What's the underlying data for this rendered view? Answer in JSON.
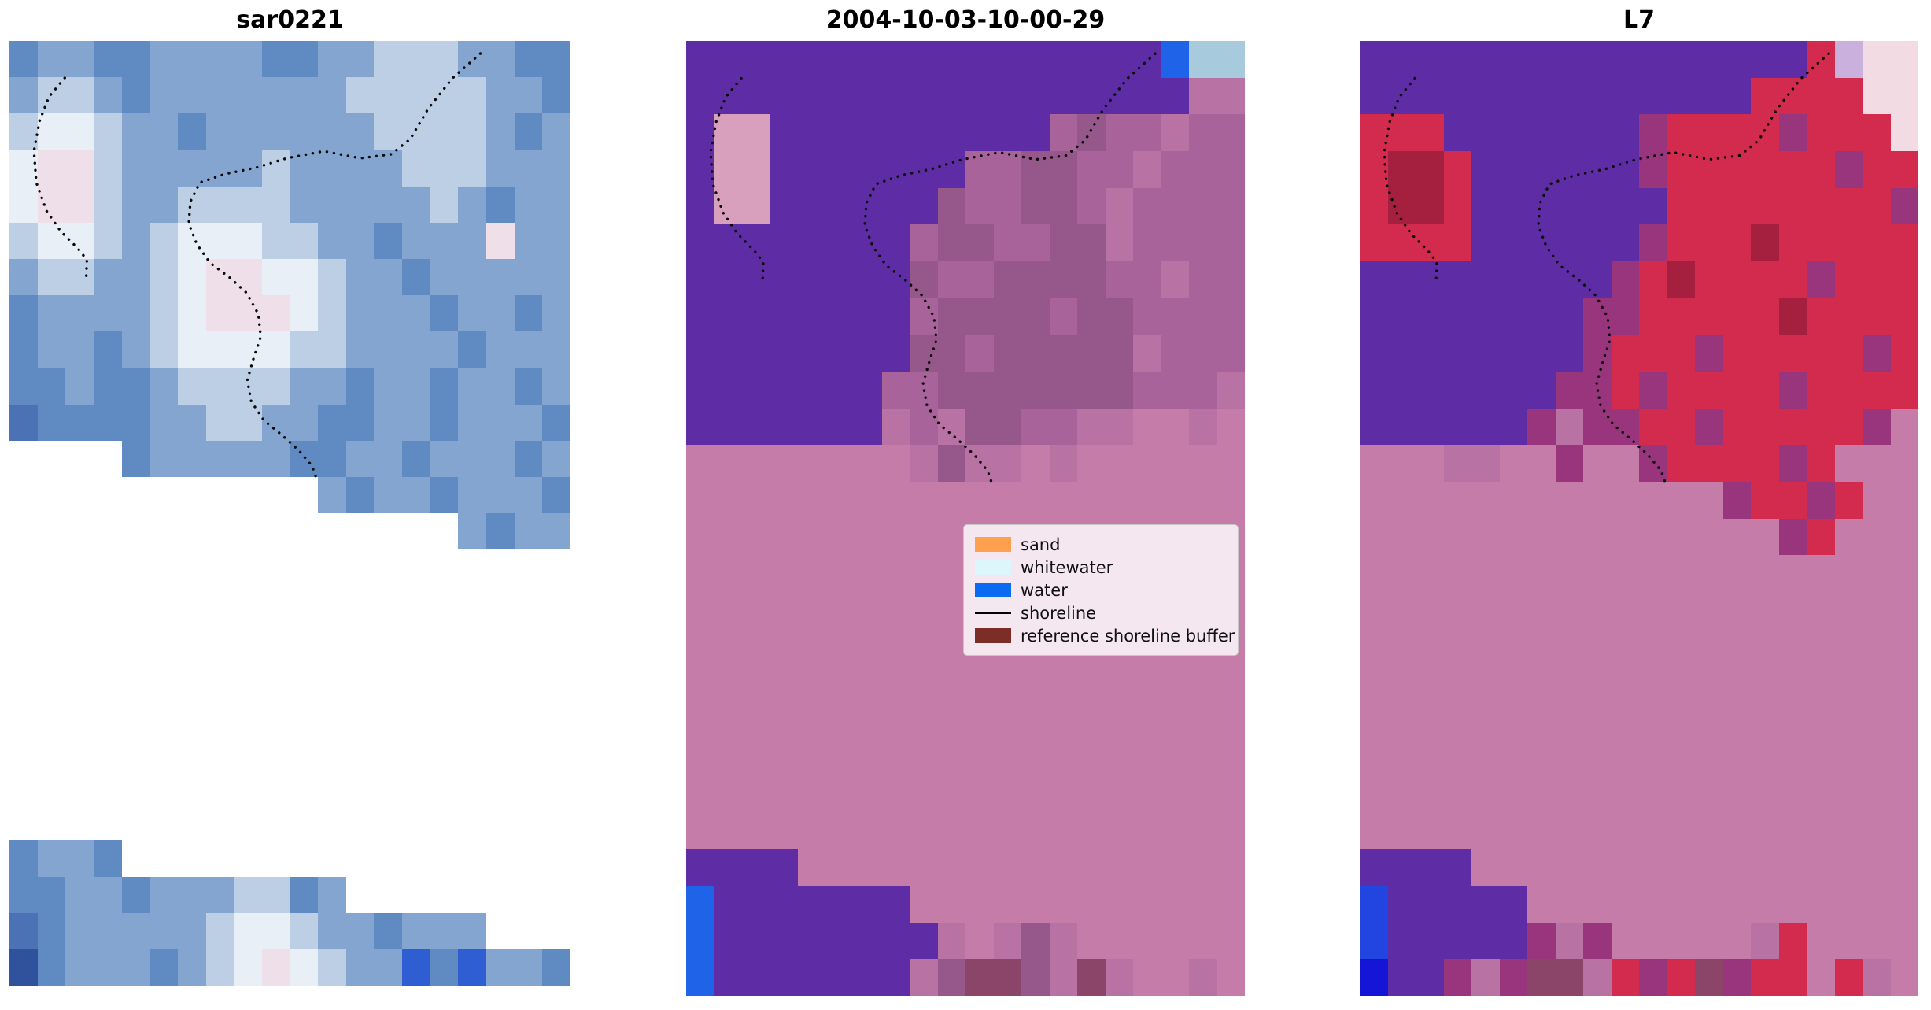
{
  "chart_data": {
    "type": "heatmap",
    "title": "",
    "layout": {
      "grid": false,
      "axes": false,
      "legend_position": "center of middle panel"
    },
    "panels": [
      {
        "id": "sar0221",
        "title": "sar0221",
        "description": "SAR backscatter image, blue tones, stepped no-data edges",
        "grid_size": {
          "cols": 20,
          "rows": 26
        },
        "palette": {
          "a": "#5f8ac2",
          "b": "#84a5d0",
          "c": "#bccfe5",
          "d": "#e9eff7",
          "e": "#eedfe9",
          "f": "#4a72b5",
          "g": "#30519c",
          "i": "#2e5ed2"
        },
        "pixel_rows": [
          "abbaabbbbaabbcccbbaa",
          "bccbabbbbbbbcccccbba",
          "cddcbbabbbbbbccccbab",
          "deecbbbbbcbbbbcccbbb",
          "deecbbccccbbbbbcbabb",
          "cddcbcdddccbbabbbebb",
          "bccbbcdeeddcbbabbbbb",
          "abbbbcdeeedcbbbabbab",
          "abbabcddddccbbbbabbb",
          "aabaabccccbbabbabbab",
          "faaaabbccbbaabbabbba",
          "....abbbbbaabbabbbab",
          "...........babbabbba",
          "................babb",
          "....................",
          "....................",
          "....................",
          "....................",
          "....................",
          "....................",
          "....................",
          "....................",
          "abba................",
          "aabbabbbccab........",
          "fabbbbbcddcbbabbb...",
          "gabbbabcdedcbbiaibba"
        ]
      },
      {
        "id": "classification",
        "title": "2004-10-03-10-00-29",
        "description": "classified image: purple water class over pink reference shoreline buffer",
        "grid_size": {
          "cols": 20,
          "rows": 26
        },
        "palette": {
          "p": "#5e2ca4",
          "r": "#d9a0bd",
          "m": "#a9639b",
          "n": "#96578b",
          "q": "#b873a4",
          "k": "#c67ca9",
          "b": "#1e63e8",
          "c": "#a7cbdc",
          "o": "#8a4568"
        },
        "pixel_rows": [
          "pppppppppppppppppbcc",
          "ppppppppppppppppppqq",
          "prrppppppppppmnmmqmm",
          "prrpppppppmmnnmmqmmm",
          "prrppppppnmmnnmqmmmm",
          "ppppppppmnnmmnnqmmmm",
          "ppppppppnmmnnnnmmqmm",
          "ppppppppmnnnnmnnmmmm",
          "ppppppppnnmnnnnnqmmm",
          "pppppppmmnnnnnnnmmmq",
          "pppppppqmqnnmmqqkkqk",
          "kkkkkkkkqnqqkqkkkkkk",
          "kkkkkkkkkkkkkkkkkkkk",
          "kkkkkkkkkkkkkkkkkkkk",
          "kkkkkkkkkkkkkkkkkkkk",
          "kkkkkkkkkkkkkkkkkkkk",
          "kkkkkkkkkkkkkkkkkkkk",
          "kkkkkkkkkkkkkkkkkkkk",
          "kkkkkkkkkkkkkkkkkkkk",
          "kkkkkkkkkkkkkkkkkkkk",
          "kkkkkkkkkkkkkkkkkkkk",
          "kkkkkkkkkkkkkkkkkkkk",
          "ppppkkkkkkkkkkkkkkkk",
          "bpppppppkkkkkkkkkkkk",
          "bppppppppqkqnqkkkkkk",
          "bpppppppqnoonqoqkkqk"
        ]
      },
      {
        "id": "L7",
        "title": "L7",
        "description": "Landsat 7 false-color image, red and purple tones under pink buffer",
        "grid_size": {
          "cols": 20,
          "rows": 26
        },
        "palette": {
          "p": "#5e2ca4",
          "v": "#99357d",
          "r": "#d22b4d",
          "R": "#a51f3f",
          "k": "#c67ca9",
          "q": "#b873a4",
          "w": "#f3dbe4",
          "l": "#c9b0dd",
          "b": "#2244e0",
          "B": "#1515d8",
          "o": "#8a4568"
        },
        "pixel_rows": [
          "pppppppppppppppprlww",
          "pppppppppppppprrrrww",
          "rrrpppppppvrrrrvrrrw",
          "rRRrppppppvrrrrrrvrr",
          "rRRrppppppprrrrrrrrv",
          "rrrrppppppvrrrRrrrrr",
          "pppppppppvrRrrrrvrrr",
          "ppppppppvvrrrrrRrrrr",
          "ppppppppvrrrvrrrrrvr",
          "pppppppvvrvrrrrvrrrr",
          "ppppppvqvvrrvrrrrrvk",
          "kkkqqkkvkkvrrrrvrkkk",
          "kkkkkkkkkkkkkvrrvrkk",
          "kkkkkkkkkkkkkkkvrkkk",
          "kkkkkkkkkkkkkkkkkkkk",
          "kkkkkkkkkkkkkkkkkkkk",
          "kkkkkkkkkkkkkkkkkkkk",
          "kkkkkkkkkkkkkkkkkkkk",
          "kkkkkkkkkkkkkkkkkkkk",
          "kkkkkkkkkkkkkkkkkkkk",
          "kkkkkkkkkkkkkkkkkkkk",
          "kkkkkkkkkkkkkkkkkkkk",
          "ppppkkkkkkkkkkkkkkkk",
          "bpppppkkkkkkkkkkkkkk",
          "bpppppvqvkkkkkqrkkkk",
          "Bppvqvooqrvrovrrkrqk"
        ]
      }
    ],
    "shoreline": {
      "color": "#0a0a0a",
      "style": "dotted",
      "coordinate_space": [
        710,
        1200
      ],
      "segments": [
        [
          [
            596,
            16
          ],
          [
            561,
            47
          ],
          [
            530,
            86
          ],
          [
            507,
            125
          ],
          [
            483,
            144
          ],
          [
            444,
            149
          ],
          [
            398,
            140
          ],
          [
            351,
            149
          ],
          [
            312,
            161
          ],
          [
            273,
            169
          ],
          [
            241,
            180
          ],
          [
            229,
            204
          ],
          [
            227,
            232
          ],
          [
            237,
            258
          ],
          [
            254,
            282
          ],
          [
            278,
            300
          ],
          [
            300,
            320
          ],
          [
            315,
            347
          ],
          [
            318,
            376
          ],
          [
            309,
            403
          ],
          [
            301,
            431
          ],
          [
            306,
            458
          ],
          [
            322,
            482
          ],
          [
            344,
            500
          ],
          [
            366,
            520
          ],
          [
            383,
            540
          ],
          [
            390,
            560
          ]
        ],
        [
          [
            70,
            47
          ],
          [
            50,
            71
          ],
          [
            38,
            102
          ],
          [
            31,
            140
          ],
          [
            34,
            180
          ],
          [
            47,
            216
          ],
          [
            65,
            242
          ],
          [
            86,
            263
          ],
          [
            98,
            278
          ],
          [
            97,
            305
          ]
        ]
      ]
    },
    "legend": {
      "entries": [
        {
          "label": "sand",
          "color": "#ffa04e",
          "type": "rect"
        },
        {
          "label": "whitewater",
          "color": "#ddf6fb",
          "type": "rect"
        },
        {
          "label": "water",
          "color": "#0a6af0",
          "type": "rect"
        },
        {
          "label": "shoreline",
          "color": "#000000",
          "type": "line"
        },
        {
          "label": "reference shoreline buffer",
          "color": "#7c2d26",
          "type": "rect"
        }
      ]
    }
  }
}
